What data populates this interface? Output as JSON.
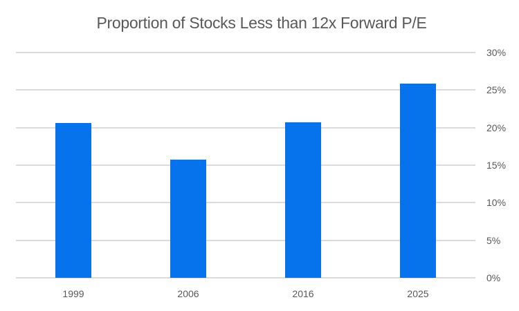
{
  "chart_data": {
    "type": "bar",
    "title": "Proportion of Stocks Less than 12x Forward P/E",
    "categories": [
      "1999",
      "2006",
      "2016",
      "2025"
    ],
    "values": [
      20.6,
      15.7,
      20.7,
      25.9
    ],
    "unit": "%",
    "xlabel": "",
    "ylabel": "",
    "ylim": [
      0,
      30
    ],
    "ytick_step": 5,
    "ytick_labels": [
      "0%",
      "5%",
      "10%",
      "15%",
      "20%",
      "25%",
      "30%"
    ],
    "yaxis_side": "right",
    "grid": true,
    "legend": false,
    "colors": {
      "bar": "#0673EC",
      "gridline": "#DBDBDB",
      "text": "#595959",
      "background": "#FFFFFF"
    }
  }
}
